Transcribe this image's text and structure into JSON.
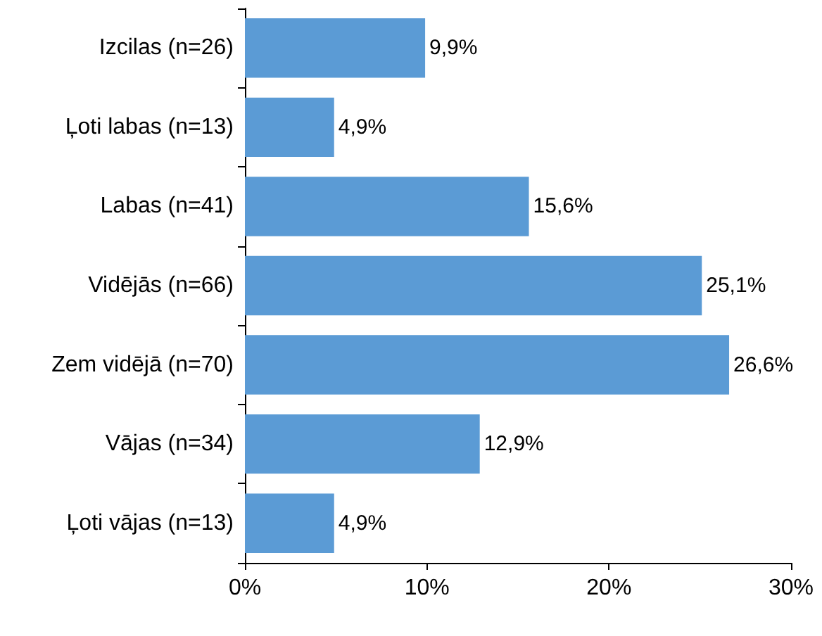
{
  "chart_data": {
    "type": "bar",
    "orientation": "horizontal",
    "categories": [
      "Izcilas (n=26)",
      "Ļoti labas (n=13)",
      "Labas (n=41)",
      "Vidējās (n=66)",
      "Zem vidējā (n=70)",
      "Vājas (n=34)",
      "Ļoti vājas (n=13)"
    ],
    "values": [
      9.9,
      4.9,
      15.6,
      25.1,
      26.6,
      12.9,
      4.9
    ],
    "value_labels": [
      "9,9%",
      "4,9%",
      "15,6%",
      "25,1%",
      "26,6%",
      "12,9%",
      "4,9%"
    ],
    "color": "#5b9bd5",
    "xlim": [
      0,
      30
    ],
    "xticks": [
      {
        "value": 0,
        "label": "0%"
      },
      {
        "value": 10,
        "label": "10%"
      },
      {
        "value": 20,
        "label": "20%"
      },
      {
        "value": 30,
        "label": "30%"
      }
    ],
    "grid": false
  }
}
